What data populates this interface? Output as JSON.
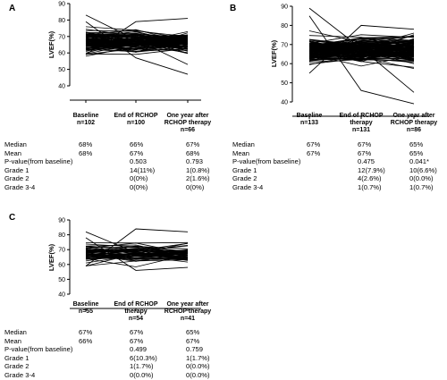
{
  "chart_data": [
    {
      "type": "line",
      "panel_label": "A",
      "ylabel": "LVEF(%)",
      "ylim": [
        40,
        90
      ],
      "yticks": [
        40,
        50,
        60,
        70,
        80,
        90
      ],
      "categories": [
        [
          "Baseline",
          "n=102"
        ],
        [
          "End of RCHOP",
          "n=100"
        ],
        [
          "One year after",
          "RCHOP therapy",
          "n=66"
        ]
      ],
      "series_count": 102,
      "series_range": {
        "baseline": [
          57,
          83
        ],
        "end_of_rchop": [
          57,
          79
        ],
        "one_year_after": [
          47,
          81
        ]
      },
      "stats": {
        "labels": [
          "Median",
          "Mean",
          "P-value(from baseline)",
          "Grade 1",
          "Grade 2",
          "Grade 3-4"
        ],
        "columns": [
          [
            "68%",
            "68%",
            "",
            "",
            "",
            ""
          ],
          [
            "66%",
            "67%",
            "0.503",
            "14(11%)",
            "0(0%)",
            "0(0%)"
          ],
          [
            "67%",
            "68%",
            "0.793",
            "1(0.8%)",
            "2(1.6%)",
            "0(0%)"
          ]
        ]
      }
    },
    {
      "type": "line",
      "panel_label": "B",
      "ylabel": "LVEF(%)",
      "ylim": [
        40,
        90
      ],
      "yticks": [
        40,
        50,
        60,
        70,
        80,
        90
      ],
      "categories": [
        [
          "Baseline",
          "n=133"
        ],
        [
          "End of RCHOP",
          "therapy",
          "n=131"
        ],
        [
          "One year after",
          "RCHOP therapy",
          "n=86"
        ]
      ],
      "series_count": 133,
      "series_range": {
        "baseline": [
          53,
          89
        ],
        "end_of_rchop": [
          46,
          80
        ],
        "one_year_after": [
          39,
          78
        ]
      },
      "stats": {
        "labels": [
          "Median",
          "Mean",
          "P-value(from baseline)",
          "Grade 1",
          "Grade 2",
          "Grade 3-4"
        ],
        "columns": [
          [
            "67%",
            "67%",
            "",
            "",
            "",
            ""
          ],
          [
            "67%",
            "67%",
            "0.475",
            "12(7.9%)",
            "4(2.6%)",
            "1(0.7%)"
          ],
          [
            "65%",
            "65%",
            "0.041*",
            "10(6.6%)",
            "0(0.0%)",
            "1(0.7%)"
          ]
        ]
      }
    },
    {
      "type": "line",
      "panel_label": "C",
      "ylabel": "LVEF(%)",
      "ylim": [
        40,
        90
      ],
      "yticks": [
        40,
        50,
        60,
        70,
        80,
        90
      ],
      "categories": [
        [
          "Baseline",
          "n=55"
        ],
        [
          "End of RCHOP",
          "therapy",
          "n=54"
        ],
        [
          "One year after",
          "RCHOP therapy",
          "n=41"
        ]
      ],
      "series_count": 55,
      "series_range": {
        "baseline": [
          57,
          82
        ],
        "end_of_rchop": [
          56,
          84
        ],
        "one_year_after": [
          58,
          82
        ]
      },
      "stats": {
        "labels": [
          "Median",
          "Mean",
          "P-value(from baseline)",
          "Grade 1",
          "Grade 2",
          "Grade 3-4"
        ],
        "columns": [
          [
            "67%",
            "66%",
            "",
            "",
            "",
            ""
          ],
          [
            "67%",
            "67%",
            "0.499",
            "6(10.3%)",
            "1(1.7%)",
            "0(0.0%)"
          ],
          [
            "65%",
            "67%",
            "0.759",
            "1(1.7%)",
            "0(0.0%)",
            "0(0.0%)"
          ]
        ]
      }
    }
  ]
}
